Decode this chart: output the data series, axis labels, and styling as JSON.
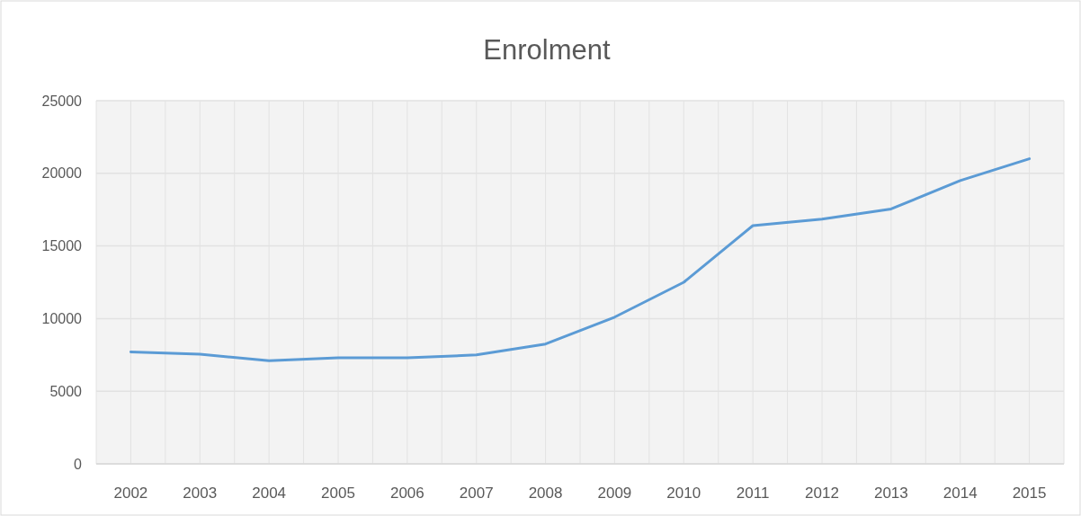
{
  "chart_data": {
    "type": "line",
    "title": "Enrolment",
    "categories": [
      "2002",
      "2003",
      "2004",
      "2005",
      "2006",
      "2007",
      "2008",
      "2009",
      "2010",
      "2011",
      "2012",
      "2013",
      "2014",
      "2015"
    ],
    "series": [
      {
        "color": "#5b9bd5",
        "values": [
          7700,
          7550,
          7100,
          7300,
          7300,
          7500,
          8250,
          10100,
          12500,
          16400,
          16850,
          17550,
          19500,
          21000
        ]
      }
    ],
    "ylim": [
      0,
      25000
    ],
    "yticks": [
      0,
      5000,
      10000,
      15000,
      20000,
      25000
    ],
    "grid": true,
    "marker": "none",
    "line_style": "solid"
  }
}
